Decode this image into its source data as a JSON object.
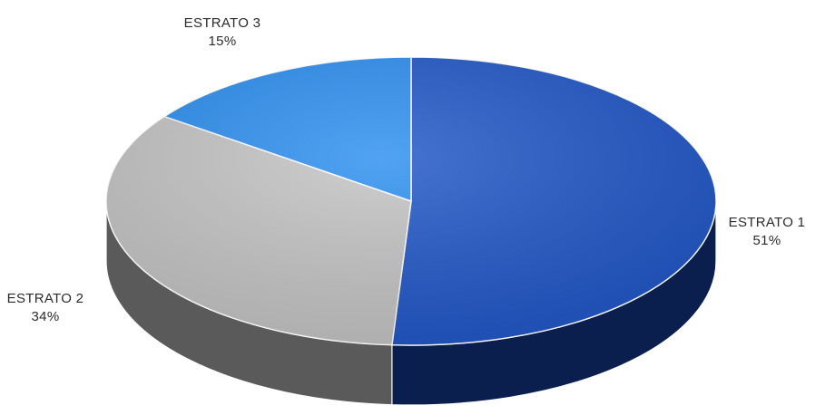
{
  "chart_data": {
    "type": "pie",
    "style": "3d",
    "title": "",
    "slices": [
      {
        "label": "ESTRATO 1",
        "value": 51,
        "display": "51%",
        "color": "#1f56c8",
        "side_color": "#0a1f4d"
      },
      {
        "label": "ESTRATO 2",
        "value": 34,
        "display": "34%",
        "color": "#c4c4c4",
        "side_color": "#5a5a5a"
      },
      {
        "label": "ESTRATO 3",
        "value": 15,
        "display": "15%",
        "color": "#2b8ef0",
        "side_color": "#1560b0"
      }
    ],
    "start_angle_deg": -90,
    "direction": "clockwise",
    "legend": "none"
  }
}
